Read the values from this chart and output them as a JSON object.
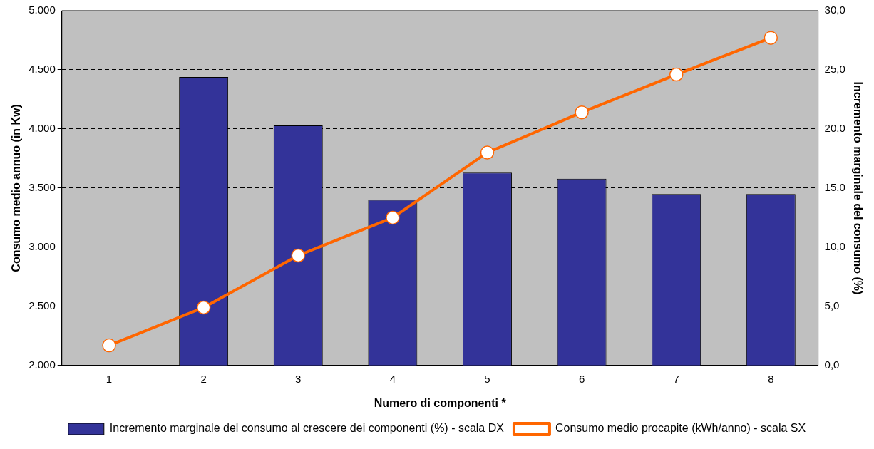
{
  "chart_data": {
    "type": "bar",
    "categories": [
      "1",
      "2",
      "3",
      "4",
      "5",
      "6",
      "7",
      "8"
    ],
    "series": [
      {
        "name": "Incremento marginale del consumo al crescere dei componenti (%) - scala DX",
        "color": "#333399",
        "axis": "y2",
        "values": [
          null,
          24.4,
          20.3,
          14.0,
          16.3,
          15.8,
          14.5,
          14.5
        ]
      },
      {
        "type": "line",
        "name": "Consumo medio procapite (kWh/anno) - scala SX",
        "color": "#ff6600",
        "marker": "circle",
        "line_style": "solid",
        "values": [
          2170,
          2490,
          2930,
          3250,
          3800,
          4140,
          4460,
          4770
        ]
      }
    ],
    "xlabel": "Numero di componenti *",
    "ylabel": "Consumo medio annuo (in Kw)",
    "y2label": "Incremento marginale del consumo (%)",
    "ylim": [
      2000,
      5000
    ],
    "yticks": [
      {
        "value": 2000,
        "label": "2.000"
      },
      {
        "value": 2500,
        "label": "2.500"
      },
      {
        "value": 3000,
        "label": "3.000"
      },
      {
        "value": 3500,
        "label": "3.500"
      },
      {
        "value": 4000,
        "label": "4.000"
      },
      {
        "value": 4500,
        "label": "4.500"
      },
      {
        "value": 5000,
        "label": "5.000"
      }
    ],
    "y2lim": [
      0,
      30
    ],
    "y2ticks": [
      {
        "value": 0,
        "label": "0,0"
      },
      {
        "value": 5,
        "label": "5,0"
      },
      {
        "value": 10,
        "label": "10,0"
      },
      {
        "value": 15,
        "label": "15,0"
      },
      {
        "value": 20,
        "label": "20,0"
      },
      {
        "value": 25,
        "label": "25,0"
      },
      {
        "value": 30,
        "label": "30,0"
      }
    ],
    "grid": "y",
    "legend": "bottom"
  }
}
